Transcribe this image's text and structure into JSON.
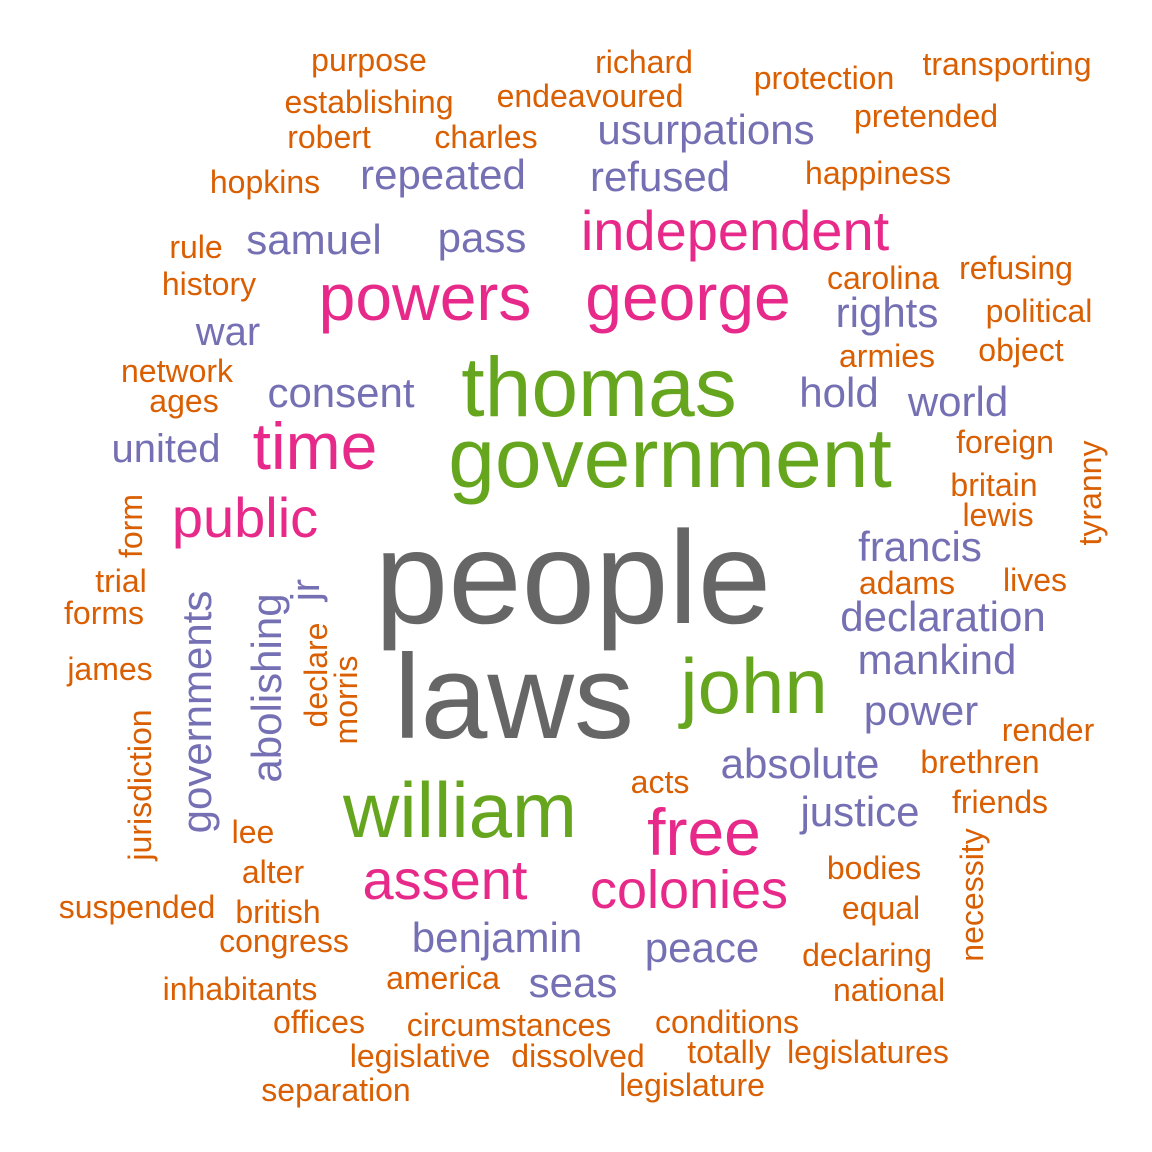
{
  "palette": {
    "gray": "#666666",
    "green": "#66a61e",
    "pink": "#e7298a",
    "purple": "#7570b3",
    "orange": "#d95f02"
  },
  "words": {
    "people": "people",
    "laws": "laws",
    "thomas": "thomas",
    "government": "government",
    "john": "john",
    "william": "william",
    "powers": "powers",
    "george": "george",
    "independent": "independent",
    "time": "time",
    "public": "public",
    "free": "free",
    "assent": "assent",
    "colonies": "colonies",
    "usurpations": "usurpations",
    "repeated": "repeated",
    "refused": "refused",
    "samuel": "samuel",
    "pass": "pass",
    "rights": "rights",
    "war": "war",
    "consent": "consent",
    "hold": "hold",
    "world": "world",
    "united": "united",
    "francis": "francis",
    "declaration": "declaration",
    "mankind": "mankind",
    "power": "power",
    "absolute": "absolute",
    "justice": "justice",
    "benjamin": "benjamin",
    "peace": "peace",
    "seas": "seas",
    "governments": "governments",
    "abolishing": "abolishing",
    "jr": "jr",
    "purpose": "purpose",
    "richard": "richard",
    "protection": "protection",
    "transporting": "transporting",
    "establishing": "establishing",
    "endeavoured": "endeavoured",
    "pretended": "pretended",
    "robert": "robert",
    "charles": "charles",
    "hopkins": "hopkins",
    "happiness": "happiness",
    "rule": "rule",
    "carolina": "carolina",
    "refusing": "refusing",
    "history": "history",
    "political": "political",
    "armies": "armies",
    "object": "object",
    "network": "network",
    "ages": "ages",
    "foreign": "foreign",
    "britain": "britain",
    "lewis": "lewis",
    "tyranny": "tyranny",
    "form": "form",
    "trial": "trial",
    "adams": "adams",
    "lives": "lives",
    "forms": "forms",
    "declare": "declare",
    "morris": "morris",
    "james": "james",
    "render": "render",
    "jurisdiction": "jurisdiction",
    "brethren": "brethren",
    "acts": "acts",
    "friends": "friends",
    "lee": "lee",
    "necessity": "necessity",
    "alter": "alter",
    "bodies": "bodies",
    "suspended": "suspended",
    "british": "british",
    "equal": "equal",
    "congress": "congress",
    "declaring": "declaring",
    "inhabitants": "inhabitants",
    "america": "america",
    "national": "national",
    "offices": "offices",
    "circumstances": "circumstances",
    "conditions": "conditions",
    "legislative": "legislative",
    "dissolved": "dissolved",
    "totally": "totally",
    "legislatures": "legislatures",
    "separation": "separation",
    "legislature": "legislature"
  }
}
